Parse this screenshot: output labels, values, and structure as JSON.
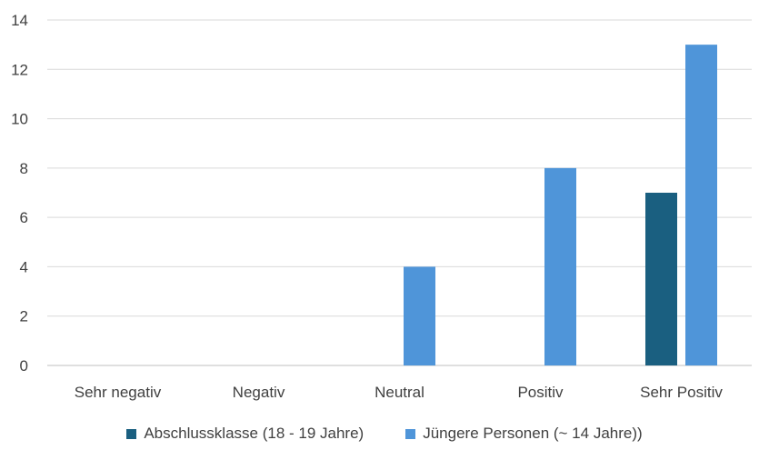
{
  "chart_data": {
    "type": "bar",
    "title": "",
    "xlabel": "",
    "ylabel": "",
    "ylim": [
      0,
      14
    ],
    "yticks": [
      0,
      2,
      4,
      6,
      8,
      10,
      12,
      14
    ],
    "grid": true,
    "legend_position": "bottom",
    "categories": [
      "Sehr negativ",
      "Negativ",
      "Neutral",
      "Positiv",
      "Sehr Positiv"
    ],
    "series": [
      {
        "name": "Abschlussklasse (18 - 19 Jahre)",
        "color": "#1a5f80",
        "values": [
          0,
          0,
          0,
          0,
          7
        ]
      },
      {
        "name": "Jüngere Personen (~ 14 Jahre))",
        "color": "#4f95d9",
        "values": [
          0,
          0,
          4,
          8,
          13
        ]
      }
    ]
  }
}
